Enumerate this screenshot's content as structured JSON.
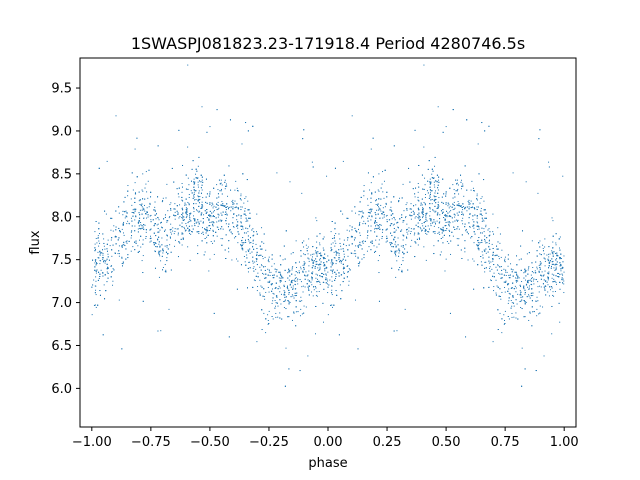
{
  "chart_data": {
    "type": "scatter",
    "title": "1SWASPJ081823.23-171918.4 Period 4280746.5s",
    "xlabel": "phase",
    "ylabel": "flux",
    "xlim": [
      -1.05,
      1.05
    ],
    "ylim": [
      5.55,
      9.85
    ],
    "xticks": [
      -1.0,
      -0.75,
      -0.5,
      -0.25,
      0.0,
      0.25,
      0.5,
      0.75,
      1.0
    ],
    "xtick_labels": [
      "−1.00",
      "−0.75",
      "−0.50",
      "−0.25",
      "0.00",
      "0.25",
      "0.50",
      "0.75",
      "1.00"
    ],
    "yticks": [
      6.0,
      6.5,
      7.0,
      7.5,
      8.0,
      8.5,
      9.0,
      9.5
    ],
    "ytick_labels": [
      "6.0",
      "6.5",
      "7.0",
      "7.5",
      "8.0",
      "8.5",
      "9.0",
      "9.5"
    ],
    "grid": false,
    "marker_color": "#1f77b4",
    "phase_profile": {
      "phase": [
        0.0,
        0.05,
        0.1,
        0.15,
        0.2,
        0.25,
        0.3,
        0.35,
        0.4,
        0.45,
        0.5,
        0.55,
        0.6,
        0.65,
        0.7,
        0.75,
        0.8,
        0.85,
        0.9,
        0.95,
        1.0
      ],
      "flux": [
        7.3,
        7.55,
        7.65,
        7.9,
        8.0,
        8.05,
        7.7,
        7.9,
        8.1,
        8.15,
        7.95,
        8.1,
        8.0,
        7.85,
        7.5,
        7.2,
        7.15,
        7.2,
        7.3,
        7.45,
        7.4
      ]
    }
  }
}
